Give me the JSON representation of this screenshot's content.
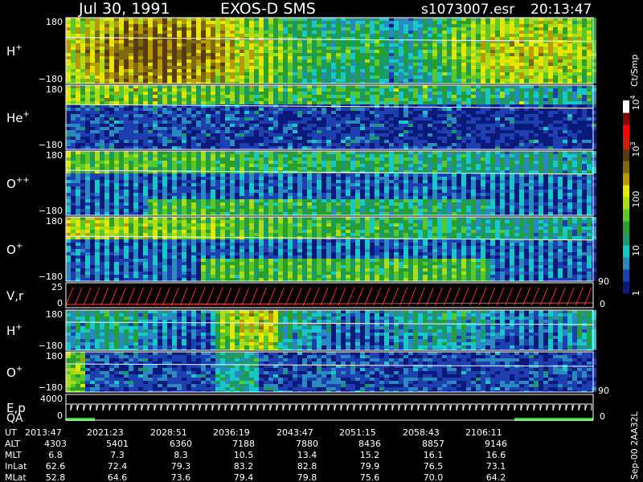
{
  "header": {
    "date": "Jul 30, 1991",
    "instrument": "EXOS-D SMS",
    "file": "s1073007.esr",
    "time": "20:13:47"
  },
  "colorbar": {
    "unit": "Ct/Smp",
    "ticks": [
      {
        "label": "1",
        "value": 1
      },
      {
        "label": "10",
        "value": 10
      },
      {
        "label": "100",
        "value": 100
      },
      {
        "label": "10",
        "sup": "3",
        "value": 1000
      },
      {
        "label": "10",
        "sup": "4",
        "value": 10000
      }
    ],
    "colors": [
      "#0a1a7a",
      "#1d3fb0",
      "#2a8ac0",
      "#18c8c8",
      "#1a9a6a",
      "#2aa02a",
      "#5ac82a",
      "#aadc18",
      "#e6e600",
      "#b89a00",
      "#7a6a10",
      "#5a3a10",
      "#cc2000",
      "#ff0000",
      "#8a0000",
      "#ffffff"
    ]
  },
  "panels": [
    {
      "id": "h-plus-1",
      "label": "H",
      "sup": "+",
      "ymax": "180",
      "ymin": "−180",
      "kind": "spectro"
    },
    {
      "id": "he-plus",
      "label": "He",
      "sup": "+",
      "ymax": "180",
      "ymin": "−180",
      "kind": "spectro"
    },
    {
      "id": "o-plusplus",
      "label": "O",
      "sup": "++",
      "ymax": "180",
      "ymin": "−180",
      "kind": "spectro"
    },
    {
      "id": "o-plus-1",
      "label": "O",
      "sup": "+",
      "ymax": "180",
      "ymin": "−180",
      "kind": "spectro"
    },
    {
      "id": "vr",
      "label": "V,r",
      "sup": "",
      "ymax": "25",
      "ymin": "0",
      "right_max": "90",
      "right_min": "0",
      "kind": "lines"
    },
    {
      "id": "h-plus-2",
      "label": "H",
      "sup": "+",
      "ymax": "180",
      "ymin": "−180",
      "kind": "spectro"
    },
    {
      "id": "o-plus-2",
      "label": "O",
      "sup": "+",
      "ymax": "180",
      "ymin": "−180",
      "kind": "spectro",
      "right_max": "90"
    },
    {
      "id": "ep-qa",
      "label": "E,p",
      "label2": "QA",
      "ymax": "4000",
      "ymin": "0",
      "right_min": "0",
      "kind": "steps"
    }
  ],
  "footer": {
    "side_label": "Sep-00 2AA32L",
    "rows": [
      {
        "name": "UT",
        "values": [
          "2013:47",
          "2021:23",
          "2028:51",
          "2036:19",
          "2043:47",
          "2051:15",
          "2058:43",
          "2106:11"
        ]
      },
      {
        "name": "ALT",
        "values": [
          "4303",
          "5401",
          "6360",
          "7188",
          "7880",
          "8436",
          "8857",
          "9146"
        ]
      },
      {
        "name": "MLT",
        "values": [
          "6.8",
          "7.3",
          "8.3",
          "10.5",
          "13.4",
          "15.2",
          "16.1",
          "16.6"
        ]
      },
      {
        "name": "InLat",
        "values": [
          "62.6",
          "72.4",
          "79.3",
          "83.2",
          "82.8",
          "79.9",
          "76.5",
          "73.1"
        ]
      },
      {
        "name": "MLat",
        "values": [
          "52.8",
          "64.6",
          "73.6",
          "79.4",
          "79.8",
          "75.6",
          "70.0",
          "64.2"
        ]
      }
    ]
  },
  "chart_data": {
    "type": "heatmap",
    "title": "Jul 30, 1991   EXOS-D SMS",
    "x": [
      "2013:47",
      "2021:23",
      "2028:51",
      "2036:19",
      "2043:47",
      "2051:15",
      "2058:43",
      "2106:11"
    ],
    "series": [
      {
        "name": "H+",
        "ylim": [
          -180,
          180
        ]
      },
      {
        "name": "He+",
        "ylim": [
          -180,
          180
        ]
      },
      {
        "name": "O++",
        "ylim": [
          -180,
          180
        ]
      },
      {
        "name": "O+",
        "ylim": [
          -180,
          180
        ]
      },
      {
        "name": "V,r",
        "ylim": [
          0,
          25
        ]
      },
      {
        "name": "H+",
        "ylim": [
          -180,
          180
        ]
      },
      {
        "name": "O+",
        "ylim": [
          -180,
          180
        ]
      },
      {
        "name": "E,p",
        "ylim": [
          0,
          4000
        ]
      }
    ],
    "colorbar_label": "Ct/Smp",
    "color_scale": "log",
    "color_range": [
      1,
      10000
    ]
  }
}
